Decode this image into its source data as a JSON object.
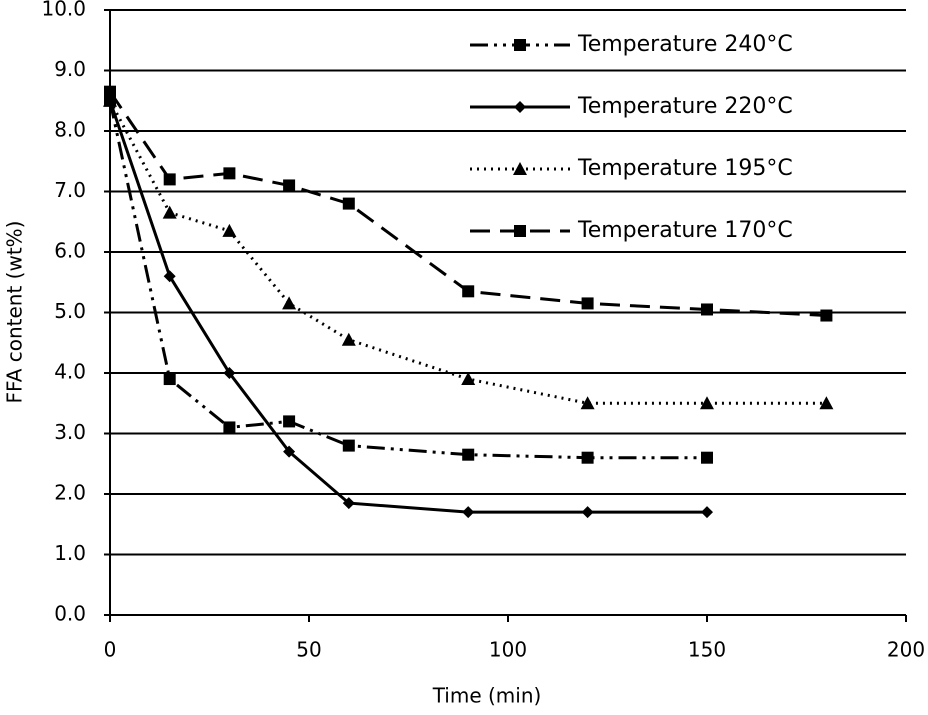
{
  "chart_data": {
    "type": "line",
    "xlabel": "Time (min)",
    "ylabel": "FFA content (wt%)",
    "xlim": [
      0,
      200
    ],
    "xticks": [
      0,
      50,
      100,
      150,
      200
    ],
    "ylim": [
      0,
      10
    ],
    "yticks": [
      {
        "value": 0,
        "label": "0.0"
      },
      {
        "value": 1,
        "label": "1.0"
      },
      {
        "value": 2,
        "label": "2.0"
      },
      {
        "value": 3,
        "label": "3.0"
      },
      {
        "value": 4,
        "label": "4.0"
      },
      {
        "value": 5,
        "label": "5.0"
      },
      {
        "value": 6,
        "label": "6.0"
      },
      {
        "value": 7,
        "label": "7.0"
      },
      {
        "value": 8,
        "label": "8.0"
      },
      {
        "value": 9,
        "label": "9.0"
      },
      {
        "value": 10,
        "label": "10.0"
      }
    ],
    "grid": true,
    "legend": "upper right",
    "series": [
      {
        "name": "Temperature 240°C",
        "color": "#000000",
        "line_style": "dashdotdot",
        "marker": "square",
        "x": [
          0,
          15,
          30,
          45,
          60,
          90,
          120,
          150
        ],
        "values": [
          8.5,
          3.9,
          3.1,
          3.2,
          2.8,
          2.65,
          2.6,
          2.6
        ]
      },
      {
        "name": "Temperature 220°C",
        "color": "#000000",
        "line_style": "solid",
        "marker": "diamond",
        "x": [
          0,
          15,
          30,
          45,
          60,
          90,
          120,
          150
        ],
        "values": [
          8.5,
          5.6,
          4.0,
          2.7,
          1.85,
          1.7,
          1.7,
          1.7
        ]
      },
      {
        "name": "Temperature 195°C",
        "color": "#000000",
        "line_style": "dotted",
        "marker": "triangle",
        "x": [
          0,
          15,
          30,
          45,
          60,
          90,
          120,
          150,
          180
        ],
        "values": [
          8.5,
          6.65,
          6.35,
          5.15,
          4.55,
          3.9,
          3.5,
          3.5,
          3.5
        ]
      },
      {
        "name": "Temperature 170°C",
        "color": "#000000",
        "line_style": "dashed",
        "marker": "square",
        "x": [
          0,
          15,
          30,
          45,
          60,
          90,
          120,
          150,
          180
        ],
        "values": [
          8.65,
          7.2,
          7.3,
          7.1,
          6.8,
          5.35,
          5.15,
          5.05,
          4.95
        ]
      }
    ]
  }
}
